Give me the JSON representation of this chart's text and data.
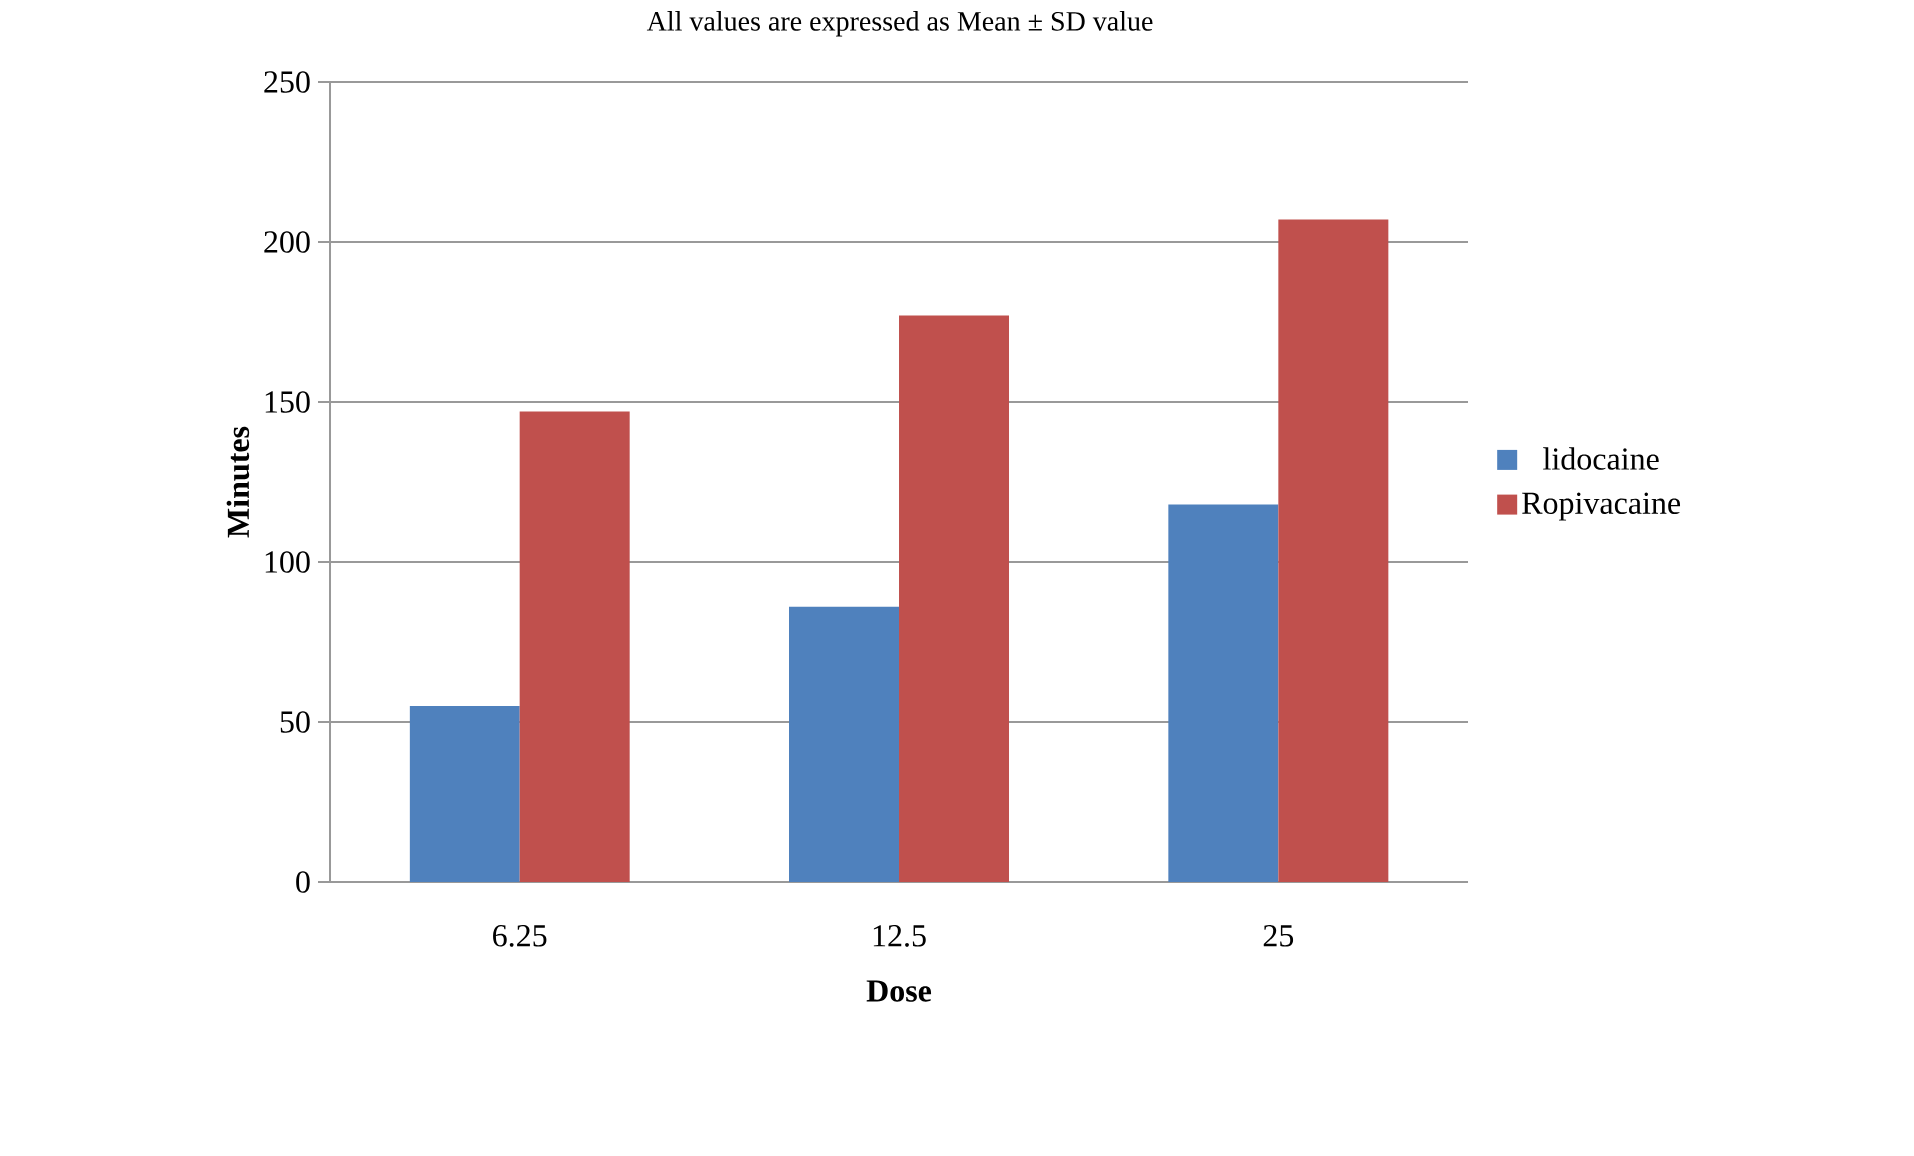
{
  "chart_data": {
    "type": "bar",
    "title": "All values are expressed as Mean ± SD value",
    "xlabel": "Dose",
    "ylabel": "Minutes",
    "categories": [
      "6.25",
      "12.5",
      "25"
    ],
    "series": [
      {
        "name": "lidocaine",
        "color": "#4f81bd",
        "values": [
          55,
          86,
          118
        ]
      },
      {
        "name": "Ropivacaine",
        "color": "#c0504d",
        "values": [
          147,
          177,
          207
        ]
      }
    ],
    "ylim": [
      0,
      250
    ],
    "yticks": [
      0,
      50,
      100,
      150,
      200,
      250
    ],
    "grid": "y",
    "legend": "right"
  }
}
